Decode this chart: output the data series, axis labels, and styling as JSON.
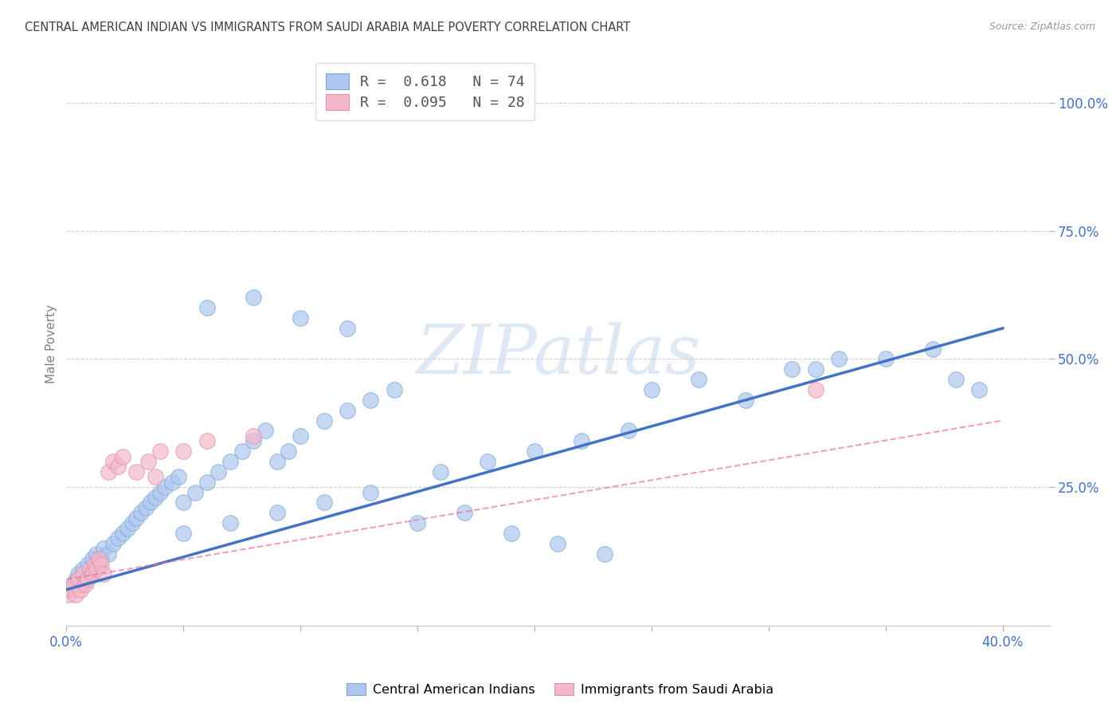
{
  "title": "CENTRAL AMERICAN INDIAN VS IMMIGRANTS FROM SAUDI ARABIA MALE POVERTY CORRELATION CHART",
  "source": "Source: ZipAtlas.com",
  "ylabel": "Male Poverty",
  "watermark": "ZIPatlas",
  "xlim": [
    0.0,
    0.42
  ],
  "ylim": [
    -0.02,
    1.08
  ],
  "xtick_vals": [
    0.0,
    0.05,
    0.1,
    0.15,
    0.2,
    0.25,
    0.3,
    0.35,
    0.4
  ],
  "xtick_labels": [
    "0.0%",
    "",
    "",
    "",
    "",
    "",
    "",
    "",
    "40.0%"
  ],
  "ytick_vals": [
    0.25,
    0.5,
    0.75,
    1.0
  ],
  "ytick_labels": [
    "25.0%",
    "50.0%",
    "75.0%",
    "100.0%"
  ],
  "legend1_label": "R =  0.618   N = 74",
  "legend2_label": "R =  0.095   N = 28",
  "legend1_color": "#aec6f0",
  "legend2_color": "#f4b8c8",
  "line1_color": "#4472c4",
  "line2_color": "#e878a0",
  "scatter1_color": "#aec6f0",
  "scatter1_edge": "#7baad4",
  "scatter2_color": "#f4b8c8",
  "scatter2_edge": "#e090b0",
  "background_color": "#ffffff",
  "grid_color": "#cccccc",
  "title_color": "#404040",
  "axis_label_color": "#808080",
  "tick_label_color": "#4472c4",
  "blue_scatter_x": [
    0.002,
    0.003,
    0.004,
    0.005,
    0.006,
    0.007,
    0.008,
    0.009,
    0.01,
    0.011,
    0.012,
    0.013,
    0.014,
    0.015,
    0.016,
    0.018,
    0.02,
    0.022,
    0.024,
    0.026,
    0.028,
    0.03,
    0.032,
    0.034,
    0.036,
    0.038,
    0.04,
    0.042,
    0.045,
    0.048,
    0.05,
    0.055,
    0.06,
    0.065,
    0.07,
    0.075,
    0.08,
    0.085,
    0.09,
    0.095,
    0.1,
    0.11,
    0.12,
    0.13,
    0.14,
    0.05,
    0.07,
    0.09,
    0.11,
    0.13,
    0.06,
    0.08,
    0.1,
    0.12,
    0.15,
    0.17,
    0.19,
    0.21,
    0.23,
    0.16,
    0.18,
    0.2,
    0.22,
    0.24,
    0.25,
    0.27,
    0.29,
    0.31,
    0.33,
    0.35,
    0.37,
    0.39,
    0.38,
    0.32
  ],
  "blue_scatter_y": [
    0.05,
    0.06,
    0.07,
    0.08,
    0.06,
    0.09,
    0.07,
    0.1,
    0.08,
    0.11,
    0.09,
    0.12,
    0.1,
    0.11,
    0.13,
    0.12,
    0.14,
    0.15,
    0.16,
    0.17,
    0.18,
    0.19,
    0.2,
    0.21,
    0.22,
    0.23,
    0.24,
    0.25,
    0.26,
    0.27,
    0.22,
    0.24,
    0.26,
    0.28,
    0.3,
    0.32,
    0.34,
    0.36,
    0.3,
    0.32,
    0.35,
    0.38,
    0.4,
    0.42,
    0.44,
    0.16,
    0.18,
    0.2,
    0.22,
    0.24,
    0.6,
    0.62,
    0.58,
    0.56,
    0.18,
    0.2,
    0.16,
    0.14,
    0.12,
    0.28,
    0.3,
    0.32,
    0.34,
    0.36,
    0.44,
    0.46,
    0.42,
    0.48,
    0.5,
    0.5,
    0.52,
    0.44,
    0.46,
    0.48
  ],
  "pink_scatter_x": [
    0.001,
    0.002,
    0.003,
    0.004,
    0.005,
    0.006,
    0.007,
    0.008,
    0.009,
    0.01,
    0.011,
    0.012,
    0.013,
    0.014,
    0.015,
    0.016,
    0.018,
    0.02,
    0.022,
    0.024,
    0.03,
    0.035,
    0.038,
    0.04,
    0.05,
    0.06,
    0.08,
    0.32
  ],
  "pink_scatter_y": [
    0.04,
    0.05,
    0.06,
    0.04,
    0.07,
    0.05,
    0.08,
    0.06,
    0.07,
    0.09,
    0.08,
    0.1,
    0.09,
    0.11,
    0.1,
    0.08,
    0.28,
    0.3,
    0.29,
    0.31,
    0.28,
    0.3,
    0.27,
    0.32,
    0.32,
    0.34,
    0.35,
    0.44
  ],
  "blue_line_x": [
    0.0,
    0.4
  ],
  "blue_line_y": [
    0.05,
    0.56
  ],
  "pink_line_x": [
    0.0,
    0.4
  ],
  "pink_line_y": [
    0.07,
    0.38
  ]
}
